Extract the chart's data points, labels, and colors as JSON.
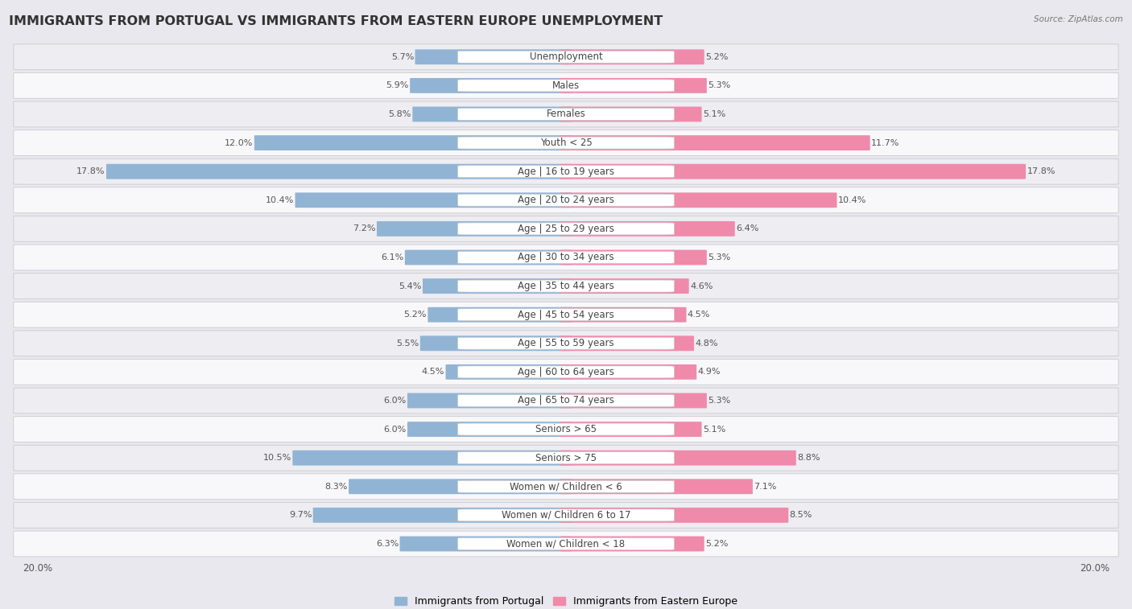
{
  "title": "IMMIGRANTS FROM PORTUGAL VS IMMIGRANTS FROM EASTERN EUROPE UNEMPLOYMENT",
  "source": "Source: ZipAtlas.com",
  "categories": [
    "Unemployment",
    "Males",
    "Females",
    "Youth < 25",
    "Age | 16 to 19 years",
    "Age | 20 to 24 years",
    "Age | 25 to 29 years",
    "Age | 30 to 34 years",
    "Age | 35 to 44 years",
    "Age | 45 to 54 years",
    "Age | 55 to 59 years",
    "Age | 60 to 64 years",
    "Age | 65 to 74 years",
    "Seniors > 65",
    "Seniors > 75",
    "Women w/ Children < 6",
    "Women w/ Children 6 to 17",
    "Women w/ Children < 18"
  ],
  "portugal_values": [
    5.7,
    5.9,
    5.8,
    12.0,
    17.8,
    10.4,
    7.2,
    6.1,
    5.4,
    5.2,
    5.5,
    4.5,
    6.0,
    6.0,
    10.5,
    8.3,
    9.7,
    6.3
  ],
  "eastern_values": [
    5.2,
    5.3,
    5.1,
    11.7,
    17.8,
    10.4,
    6.4,
    5.3,
    4.6,
    4.5,
    4.8,
    4.9,
    5.3,
    5.1,
    8.8,
    7.1,
    8.5,
    5.2
  ],
  "max_value": 20.0,
  "portugal_color": "#92b4d4",
  "eastern_color": "#f08aaa",
  "portugal_label": "Immigrants from Portugal",
  "eastern_label": "Immigrants from Eastern Europe",
  "bg_color": "#e8e8ee",
  "row_color_a": "#ededf2",
  "row_color_b": "#f8f8fb",
  "title_fontsize": 11.5,
  "label_fontsize": 8.5,
  "value_fontsize": 8,
  "legend_fontsize": 9
}
